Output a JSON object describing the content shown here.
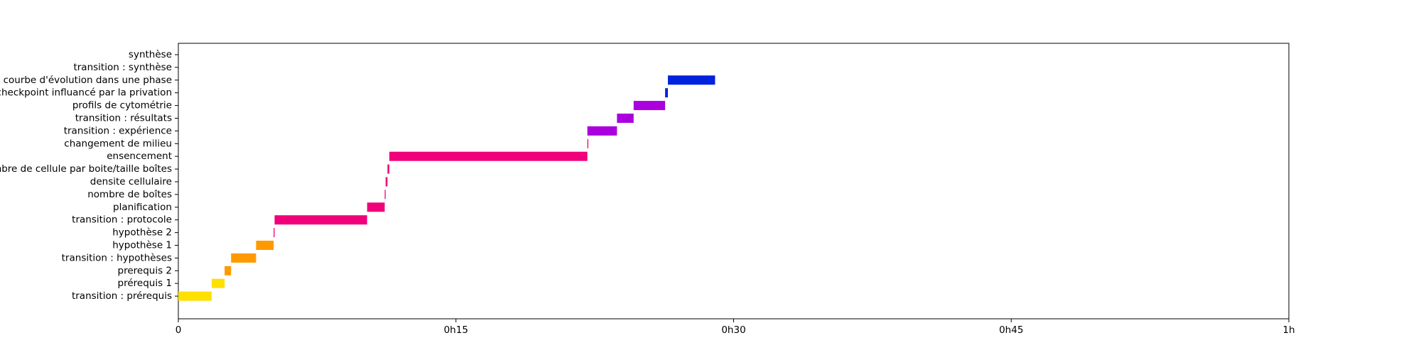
{
  "chart_data": {
    "type": "bar",
    "orientation": "horizontal",
    "xlim": [
      0,
      60
    ],
    "x_unit": "minutes",
    "x_ticks": [
      {
        "value": 0,
        "label": "0"
      },
      {
        "value": 15,
        "label": "0h15"
      },
      {
        "value": 30,
        "label": "0h30"
      },
      {
        "value": 45,
        "label": "0h45"
      },
      {
        "value": 60,
        "label": "1h"
      }
    ],
    "grid": false,
    "legend": "none",
    "tasks": [
      {
        "label": "transition : prérequis",
        "start": 0.0,
        "end": 1.8,
        "color": "#FFE000"
      },
      {
        "label": "prérequis 1",
        "start": 1.8,
        "end": 2.5,
        "color": "#FFE000"
      },
      {
        "label": "prerequis 2",
        "start": 2.5,
        "end": 2.85,
        "color": "#FF9900"
      },
      {
        "label": "transition : hypothèses",
        "start": 2.85,
        "end": 4.2,
        "color": "#FF9900"
      },
      {
        "label": "hypothèse 1",
        "start": 4.2,
        "end": 5.15,
        "color": "#FF9900"
      },
      {
        "label": "hypothèse 2",
        "start": 5.15,
        "end": 5.2,
        "color": "#F0007A"
      },
      {
        "label": "transition : protocole",
        "start": 5.2,
        "end": 10.2,
        "color": "#F0007A"
      },
      {
        "label": "planification",
        "start": 10.2,
        "end": 11.15,
        "color": "#F0007A"
      },
      {
        "label": "nombre de boîtes",
        "start": 11.15,
        "end": 11.2,
        "color": "#F0007A"
      },
      {
        "label": "densite cellulaire",
        "start": 11.2,
        "end": 11.3,
        "color": "#F0007A"
      },
      {
        "label": "nombre de cellule par boite/taille boîtes",
        "start": 11.3,
        "end": 11.4,
        "color": "#F0007A"
      },
      {
        "label": "ensencement",
        "start": 11.4,
        "end": 22.1,
        "color": "#F0007A"
      },
      {
        "label": "changement de milieu",
        "start": 22.1,
        "end": 22.15,
        "color": "#F0007A"
      },
      {
        "label": "transition : expérience",
        "start": 22.1,
        "end": 23.7,
        "color": "#AA00DD"
      },
      {
        "label": "transition : résultats",
        "start": 23.7,
        "end": 24.6,
        "color": "#AA00DD"
      },
      {
        "label": "profils de cytométrie",
        "start": 24.6,
        "end": 26.3,
        "color": "#AA00DD"
      },
      {
        "label": "checkpoint influancé par la privation",
        "start": 26.3,
        "end": 26.45,
        "color": "#0022DD"
      },
      {
        "label": "courbe d'évolution dans une phase",
        "start": 26.45,
        "end": 29.0,
        "color": "#0022DD"
      },
      {
        "label": "transition : synthèse",
        "start": null,
        "end": null,
        "color": "#0022DD"
      },
      {
        "label": "synthèse",
        "start": null,
        "end": null,
        "color": "#0022DD"
      }
    ]
  }
}
